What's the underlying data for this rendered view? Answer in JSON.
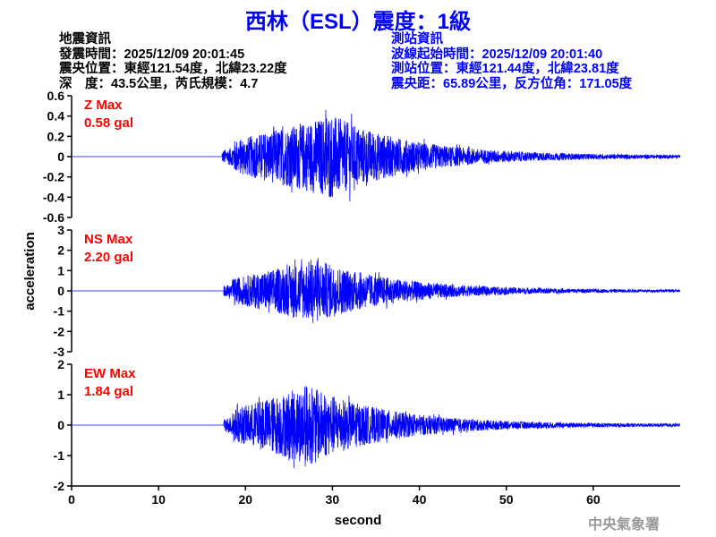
{
  "title": "西林（ESL）震度：1級",
  "earthquake_info": {
    "heading": "地震資訊",
    "origin_time": "發震時間：2025/12/09 20:01:45",
    "epicenter": "震央位置：東經121.54度，北緯23.22度",
    "depth_magnitude": "深　度：43.5公里，芮氏規模：4.7"
  },
  "station_info": {
    "heading": "測站資訊",
    "wave_start": "波線起始時間：2025/12/09 20:01:40",
    "station_location": "測站位置：東經121.44度，北緯23.81度",
    "distance": "震央距：65.89公里，反方位角：171.05度"
  },
  "agency": "中央氣象署",
  "chart_data": {
    "type": "line",
    "xlabel": "second",
    "ylabel": "acceleration",
    "xlim": [
      0,
      70
    ],
    "xticks": [
      "0",
      "10",
      "20",
      "30",
      "40",
      "50",
      "60"
    ],
    "color": "#0000ff",
    "label_color": "#ff0000",
    "panels": [
      {
        "component": "Z",
        "label": "Z Max",
        "max_label": "0.58 gal",
        "peak": 0.58,
        "ylim": [
          -0.6,
          0.6
        ],
        "yticks": [
          "0.6",
          "0.4",
          "0.2",
          "0",
          "-0.2",
          "-0.4",
          "-0.6"
        ],
        "onset_s": 17.3,
        "peak_time_s": 29.2
      },
      {
        "component": "NS",
        "label": "NS Max",
        "max_label": "2.20 gal",
        "peak": 2.2,
        "ylim": [
          -3,
          3
        ],
        "yticks": [
          "3",
          "2",
          "1",
          "0",
          "-1",
          "-2",
          "-3"
        ],
        "onset_s": 17.5,
        "peak_time_s": 27.4
      },
      {
        "component": "EW",
        "label": "EW Max",
        "max_label": "1.84 gal",
        "peak": 1.84,
        "ylim": [
          -2,
          2
        ],
        "yticks": [
          "2",
          "1",
          "0",
          "-1",
          "-2"
        ],
        "onset_s": 17.5,
        "peak_time_s": 26.5
      }
    ]
  }
}
